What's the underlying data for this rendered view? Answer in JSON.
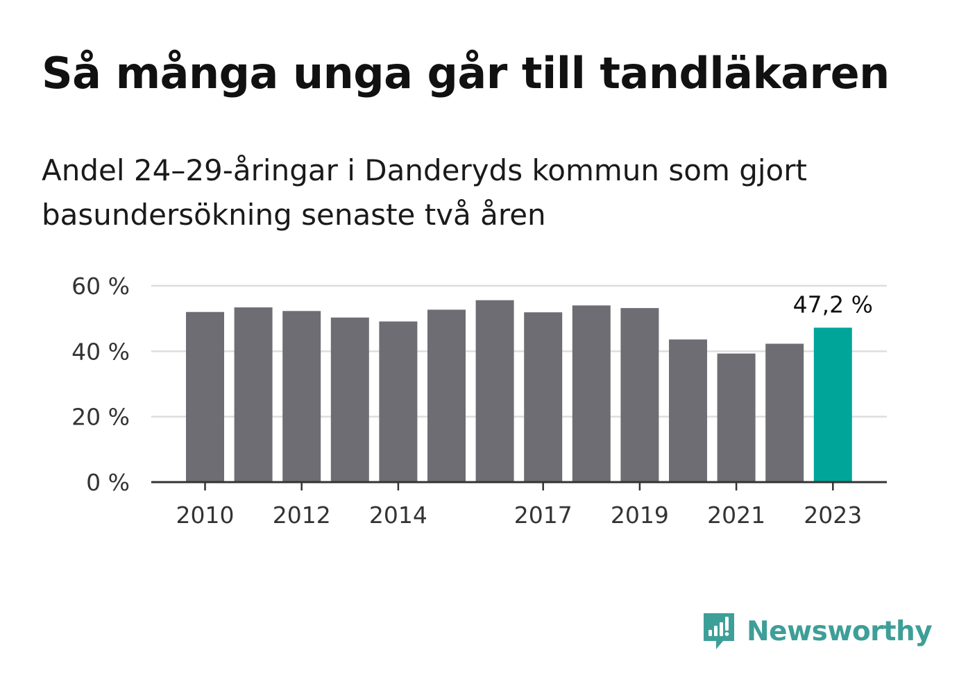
{
  "header": {
    "title": "Så många unga går till tandläkaren",
    "subtitle": "Andel 24–29-åringar i Danderyds kommun som gjort basundersökning senaste två åren"
  },
  "chart_data": {
    "type": "bar",
    "title": "Så många unga går till tandläkaren",
    "subtitle": "Andel 24–29-åringar i Danderyds kommun som gjort basundersökning senaste två åren",
    "xlabel": "",
    "ylabel": "",
    "categories": [
      "2010",
      "2011",
      "2012",
      "2013",
      "2014",
      "2015",
      "2016",
      "2017",
      "2018",
      "2019",
      "2020",
      "2021",
      "2022",
      "2023"
    ],
    "values": [
      52.0,
      53.4,
      52.3,
      50.3,
      49.1,
      52.7,
      55.6,
      51.9,
      54.0,
      53.2,
      43.6,
      39.3,
      42.3,
      47.2
    ],
    "x_tick_labels": [
      "2010",
      "2012",
      "2014",
      "2017",
      "2019",
      "2021",
      "2023"
    ],
    "y_ticks": [
      0,
      20,
      40,
      60
    ],
    "y_tick_labels": [
      "0 %",
      "20 %",
      "40 %",
      "60 %"
    ],
    "ylim": [
      0,
      60
    ],
    "grid": true,
    "highlight_index": 13,
    "highlight_label": "47,2 %",
    "colors": {
      "bar": "#6e6d73",
      "highlight": "#00a59a",
      "grid": "#dddddd",
      "axis": "#333333"
    }
  },
  "brand": {
    "name": "Newsworthy",
    "icon": "newsworthy-logo-icon",
    "color": "#3d9f98"
  }
}
